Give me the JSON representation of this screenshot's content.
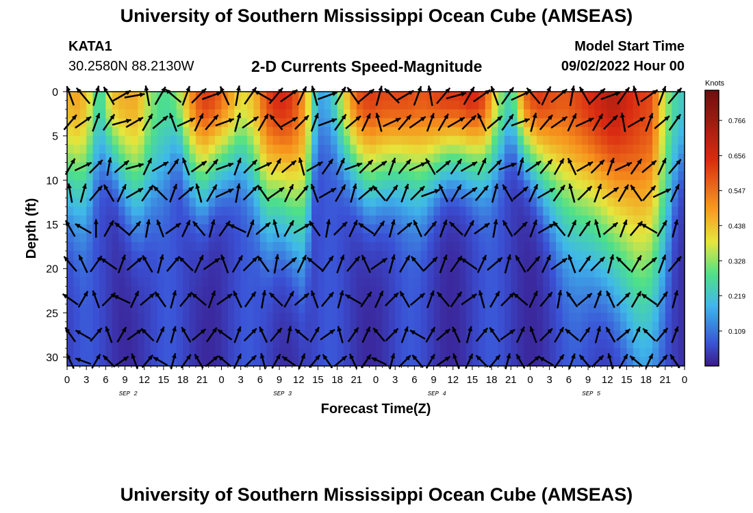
{
  "header": {
    "title": "University of Southern Mississippi Ocean Cube (AMSEAS)",
    "station": "KATA1",
    "location": "30.2580N  88.2130W",
    "subtitle": "2-D Currents Speed-Magnitude",
    "model_label": "Model Start Time",
    "model_time": "09/02/2022 Hour 00"
  },
  "footer": {
    "title": "University of Southern Mississippi Ocean Cube (AMSEAS)"
  },
  "chart_data": {
    "type": "heatmap",
    "xlabel": "Forecast Time(Z)",
    "ylabel": "Depth (ft)",
    "x_tick_labels": [
      "0",
      "3",
      "6",
      "9",
      "12",
      "15",
      "18",
      "21",
      "0",
      "3",
      "6",
      "9",
      "12",
      "15",
      "18",
      "21",
      "0",
      "3",
      "6",
      "9",
      "12",
      "15",
      "18",
      "21",
      "0",
      "3",
      "6",
      "9",
      "12",
      "15",
      "18",
      "21",
      "0"
    ],
    "date_labels": [
      {
        "label": "SEP 2",
        "hour": 9.5
      },
      {
        "label": "SEP 3",
        "hour": 33.5
      },
      {
        "label": "SEP 4",
        "hour": 57.5
      },
      {
        "label": "SEP 5",
        "hour": 81.5
      }
    ],
    "xlim": [
      0,
      96
    ],
    "y_ticks": [
      0,
      5,
      10,
      15,
      20,
      25,
      30
    ],
    "ylim": [
      0,
      31
    ],
    "colorbar": {
      "unit": "Knots",
      "ticks": [
        "0.766",
        "0.656",
        "0.547",
        "0.438",
        "0.328",
        "0.219",
        "0.109"
      ],
      "tick_values": [
        0.766,
        0.656,
        0.547,
        0.438,
        0.328,
        0.219,
        0.109
      ],
      "range": [
        0,
        0.86
      ]
    },
    "colors": [
      "#3b1a8a",
      "#3a52d6",
      "#3fb8ea",
      "#4de08a",
      "#e6e63c",
      "#f7941d",
      "#d92a12",
      "#6e0f0f"
    ],
    "speed_profile": {
      "hours": [
        0,
        1,
        3,
        5,
        7,
        9,
        11,
        13,
        15,
        17,
        19,
        21,
        23,
        25,
        27,
        29,
        31,
        33,
        35,
        37,
        39,
        41,
        43,
        45,
        47,
        49,
        51,
        53,
        55,
        57,
        59,
        61,
        63,
        65,
        67,
        69,
        71,
        73,
        75,
        77,
        79,
        81,
        83,
        85,
        87,
        89,
        91,
        93,
        95,
        96
      ],
      "surface": [
        0.55,
        0.6,
        0.55,
        0.3,
        0.55,
        0.58,
        0.58,
        0.42,
        0.35,
        0.4,
        0.6,
        0.72,
        0.7,
        0.62,
        0.5,
        0.55,
        0.7,
        0.75,
        0.72,
        0.6,
        0.22,
        0.25,
        0.5,
        0.68,
        0.72,
        0.7,
        0.7,
        0.7,
        0.68,
        0.7,
        0.72,
        0.72,
        0.75,
        0.7,
        0.45,
        0.3,
        0.65,
        0.72,
        0.7,
        0.68,
        0.7,
        0.73,
        0.76,
        0.78,
        0.75,
        0.72,
        0.7,
        0.45,
        0.3,
        0.3
      ],
      "depth_scale": [
        12,
        12,
        12,
        8,
        8,
        12,
        14,
        12,
        10,
        6,
        10,
        12,
        10,
        9,
        8,
        10,
        14,
        14,
        16,
        18,
        6,
        6,
        8,
        10,
        12,
        11,
        10,
        10,
        11,
        10,
        9,
        9,
        9,
        9,
        8,
        6,
        8,
        10,
        12,
        14,
        15,
        16,
        18,
        20,
        22,
        24,
        22,
        18,
        10,
        10
      ]
    },
    "vectors": {
      "step_hours": 2,
      "depths_ft": [
        0,
        3,
        8,
        11,
        15,
        19,
        23,
        27,
        30
      ],
      "angles_deg": [
        [
          -20,
          -40,
          15,
          -30,
          60,
          80,
          -10,
          30,
          -50,
          20,
          45,
          70,
          -25,
          10,
          35,
          -60,
          40,
          55,
          25,
          -15,
          70,
          30,
          -35,
          50,
          15,
          -45,
          60,
          20,
          -10,
          40,
          75,
          30,
          55,
          -20,
          35,
          65,
          -40,
          25,
          50,
          10,
          -30,
          45,
          70,
          35,
          -15,
          55,
          20,
          40,
          -50
        ],
        [
          40,
          55,
          20,
          35,
          75,
          60,
          30,
          50,
          -20,
          65,
          25,
          40,
          70,
          15,
          55,
          30,
          -40,
          60,
          45,
          20,
          70,
          35,
          50,
          25,
          -15,
          65,
          40,
          55,
          20,
          30,
          60,
          45,
          -25,
          50,
          35,
          70,
          15,
          40,
          55,
          25,
          65,
          30,
          45,
          -10,
          60,
          20,
          50,
          35,
          40
        ],
        [
          30,
          65,
          45,
          10,
          50,
          75,
          25,
          60,
          35,
          -20,
          55,
          40,
          70,
          20,
          45,
          65,
          30,
          50,
          -15,
          60,
          35,
          25,
          70,
          45,
          55,
          20,
          40,
          65,
          -30,
          50,
          35,
          60,
          25,
          45,
          70,
          15,
          55,
          40,
          30,
          -25,
          60,
          45,
          20,
          65,
          35,
          50,
          25,
          40,
          55
        ],
        [
          -10,
          15,
          40,
          -30,
          25,
          60,
          35,
          -45,
          20,
          50,
          -15,
          30,
          65,
          10,
          45,
          -35,
          55,
          25,
          40,
          -20,
          60,
          30,
          15,
          50,
          -40,
          35,
          20,
          45,
          70,
          -25,
          30,
          55,
          40,
          15,
          -30,
          50,
          25,
          60,
          35,
          -15,
          45,
          20,
          55,
          30,
          -35,
          40,
          65,
          25,
          50
        ],
        [
          -30,
          -60,
          0,
          30,
          -50,
          40,
          10,
          -20,
          55,
          25,
          -40,
          15,
          35,
          -65,
          20,
          50,
          -15,
          30,
          60,
          -35,
          10,
          45,
          25,
          -55,
          35,
          15,
          50,
          -25,
          40,
          20,
          -45,
          30,
          55,
          10,
          -30,
          45,
          20,
          60,
          -40,
          25,
          35,
          -15,
          50,
          20,
          40,
          -60,
          30,
          15,
          45
        ],
        [
          -40,
          -25,
          35,
          -55,
          20,
          50,
          -30,
          15,
          40,
          -45,
          25,
          55,
          -20,
          30,
          45,
          -35,
          10,
          50,
          25,
          -50,
          35,
          20,
          40,
          -25,
          55,
          15,
          30,
          -40,
          45,
          20,
          35,
          -55,
          25,
          50,
          15,
          -30,
          40,
          25,
          55,
          -20,
          35,
          45,
          15,
          -45,
          30,
          50,
          20,
          40,
          -35
        ],
        [
          -55,
          30,
          -20,
          45,
          -65,
          25,
          50,
          -35,
          15,
          40,
          -50,
          20,
          55,
          -25,
          35,
          10,
          -45,
          30,
          50,
          -20,
          40,
          15,
          -60,
          35,
          25,
          45,
          -30,
          50,
          20,
          -40,
          35,
          55,
          -15,
          30,
          45,
          -50,
          25,
          40,
          10,
          -35,
          50,
          20,
          -25,
          45,
          30,
          -55,
          35,
          15,
          40
        ],
        [
          -35,
          -60,
          40,
          -20,
          30,
          55,
          -45,
          25,
          15,
          -30,
          50,
          35,
          -55,
          20,
          45,
          -25,
          40,
          10,
          -50,
          30,
          55,
          -15,
          35,
          25,
          -40,
          45,
          20,
          -60,
          30,
          50,
          -25,
          15,
          40,
          -35,
          55,
          25,
          -20,
          45,
          30,
          -50,
          35,
          15,
          -30,
          50,
          25,
          -45,
          40,
          20,
          -55
        ],
        [
          -25,
          -70,
          30,
          -45,
          55,
          -20,
          40,
          -60,
          15,
          35,
          -30,
          50,
          -50,
          25,
          45,
          -15,
          30,
          -55,
          20,
          40,
          -35,
          50,
          -25,
          35,
          -65,
          15,
          45,
          -40,
          30,
          55,
          -20,
          25,
          -45,
          40,
          15,
          -30,
          50,
          -60,
          35,
          20,
          -40,
          45,
          -15,
          30,
          -50,
          25,
          40,
          -35,
          20
        ]
      ],
      "speed_scale": [
        1.0,
        0.95,
        0.9,
        0.95,
        0.9,
        0.95,
        0.9,
        0.85,
        0.8
      ]
    }
  }
}
